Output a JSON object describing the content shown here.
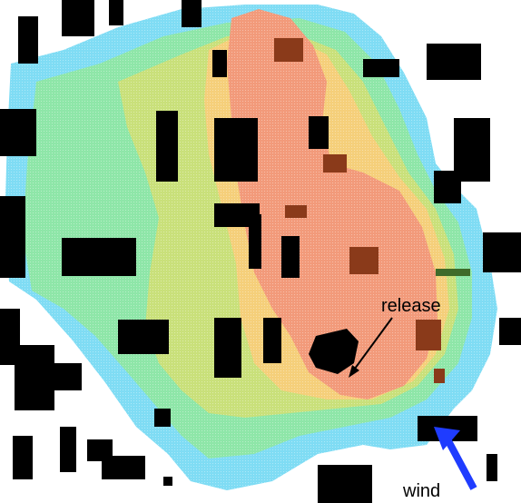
{
  "annotations": {
    "release_label": "release",
    "wind_label": "wind"
  },
  "legend_colors": {
    "low": "#7fdcf4",
    "low_mid": "#8ee6a8",
    "mid": "#c9e07a",
    "mid_high": "#f5cf7a",
    "high": "#f29a7a",
    "peak": "#8a3a1a",
    "building": "#000000",
    "wind_arrow": "#1f3cff"
  },
  "icons": {
    "wind_arrow": "arrow-up-left-icon",
    "release_pointer": "arrow-down-left-icon"
  }
}
